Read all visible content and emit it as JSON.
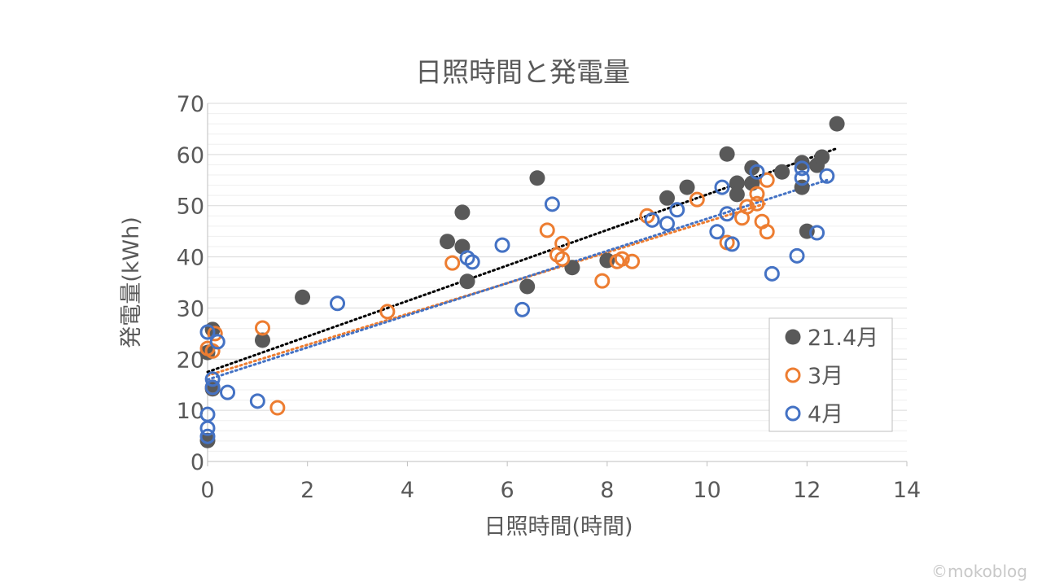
{
  "chart_data": {
    "type": "scatter",
    "title": "日照時間と発電量",
    "xlabel": "日照時間(時間)",
    "ylabel": "発電量(kWh)",
    "xlim": [
      0,
      14
    ],
    "ylim": [
      0,
      70
    ],
    "xticks": [
      "0",
      "2",
      "4",
      "6",
      "8",
      "10",
      "12",
      "14"
    ],
    "yticks": [
      "0",
      "10",
      "20",
      "30",
      "40",
      "50",
      "60",
      "70"
    ],
    "grid": "horizontal major and minor",
    "legend_position": "bottom-right",
    "series": [
      {
        "name": "21.4月",
        "color": "#595959",
        "marker": "filled-circle",
        "trendline": [
          [
            0,
            17.5
          ],
          [
            12.6,
            61.2
          ]
        ],
        "points": [
          [
            0,
            21.3
          ],
          [
            0.1,
            25.8
          ],
          [
            0.1,
            14.2
          ],
          [
            0,
            4.1
          ],
          [
            1.1,
            23.7
          ],
          [
            1.9,
            32.1
          ],
          [
            4.8,
            43
          ],
          [
            5.1,
            48.7
          ],
          [
            5.1,
            42
          ],
          [
            5.2,
            35.2
          ],
          [
            6.4,
            34.2
          ],
          [
            6.6,
            55.4
          ],
          [
            7.3,
            37.9
          ],
          [
            8,
            39.3
          ],
          [
            9.2,
            51.5
          ],
          [
            9.6,
            53.6
          ],
          [
            10.4,
            60.1
          ],
          [
            10.6,
            54.4
          ],
          [
            10.6,
            52.2
          ],
          [
            10.9,
            57.4
          ],
          [
            10.9,
            54.4
          ],
          [
            11.5,
            56.6
          ],
          [
            11.9,
            53.6
          ],
          [
            11.9,
            58.4
          ],
          [
            12,
            45
          ],
          [
            12.2,
            57.9
          ],
          [
            12.3,
            59.5
          ],
          [
            12.6,
            66
          ]
        ]
      },
      {
        "name": "3月",
        "color": "#ED7D31",
        "marker": "open-circle",
        "trendline": [
          [
            0,
            16.8
          ],
          [
            11.2,
            50.5
          ]
        ],
        "points": [
          [
            0.1,
            21.6
          ],
          [
            0.15,
            25
          ],
          [
            0,
            22.1
          ],
          [
            0.1,
            14.5
          ],
          [
            1.1,
            26.1
          ],
          [
            1.4,
            10.5
          ],
          [
            3.6,
            29.3
          ],
          [
            4.9,
            38.8
          ],
          [
            6.8,
            45.2
          ],
          [
            7,
            40.4
          ],
          [
            7.1,
            42.6
          ],
          [
            7.1,
            39.6
          ],
          [
            7.9,
            35.3
          ],
          [
            8.2,
            39.1
          ],
          [
            8.3,
            39.6
          ],
          [
            8.5,
            39.1
          ],
          [
            8.8,
            48
          ],
          [
            9.8,
            51.2
          ],
          [
            10.4,
            42.8
          ],
          [
            10.7,
            47.6
          ],
          [
            10.8,
            49.8
          ],
          [
            11,
            50.4
          ],
          [
            11,
            52.3
          ],
          [
            11.1,
            46.9
          ],
          [
            11.2,
            44.9
          ],
          [
            11.2,
            55
          ]
        ]
      },
      {
        "name": "4月",
        "color": "#4472C4",
        "marker": "open-circle",
        "trendline": [
          [
            0,
            16
          ],
          [
            12.4,
            55
          ]
        ],
        "points": [
          [
            0,
            25.3
          ],
          [
            0.2,
            23.4
          ],
          [
            0.1,
            16.1
          ],
          [
            0.1,
            14.5
          ],
          [
            0.4,
            13.5
          ],
          [
            1,
            11.8
          ],
          [
            0,
            9.2
          ],
          [
            0,
            6.5
          ],
          [
            0,
            4.9
          ],
          [
            2.6,
            30.9
          ],
          [
            5.2,
            39.8
          ],
          [
            5.3,
            39
          ],
          [
            5.9,
            42.3
          ],
          [
            6.3,
            29.7
          ],
          [
            6.9,
            50.3
          ],
          [
            8.9,
            47.2
          ],
          [
            9.2,
            46.5
          ],
          [
            9.4,
            49.2
          ],
          [
            10.2,
            44.9
          ],
          [
            10.3,
            53.6
          ],
          [
            10.4,
            48.4
          ],
          [
            10.5,
            42.5
          ],
          [
            11,
            56.6
          ],
          [
            11.3,
            36.7
          ],
          [
            11.8,
            40.2
          ],
          [
            11.9,
            55.4
          ],
          [
            11.9,
            57.3
          ],
          [
            12.2,
            44.7
          ],
          [
            12.4,
            55.8
          ]
        ]
      }
    ]
  },
  "credit": "©mokoblog"
}
